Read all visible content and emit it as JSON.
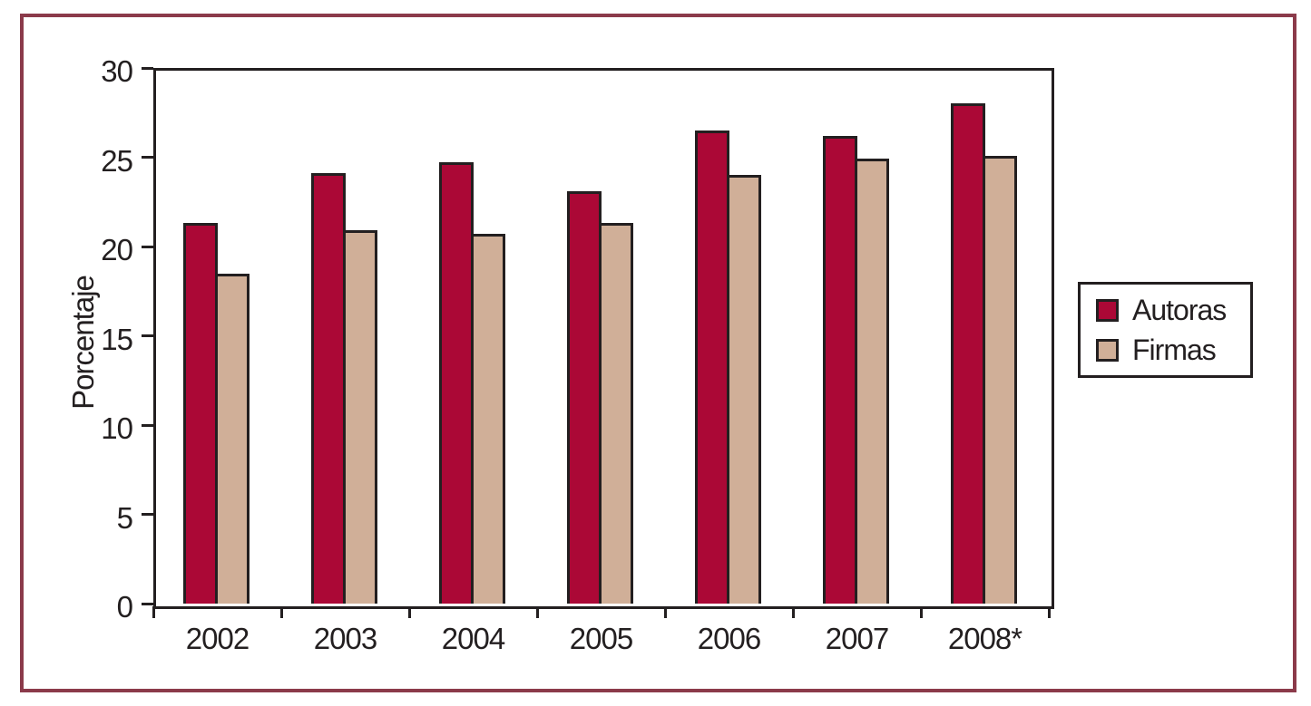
{
  "frame": {
    "border_color": "#8B3A4A"
  },
  "chart_data": {
    "type": "bar",
    "title": "",
    "categories": [
      "2002",
      "2003",
      "2004",
      "2005",
      "2006",
      "2007",
      "2008*"
    ],
    "series": [
      {
        "name": "Autoras",
        "color": "#AB0836",
        "values": [
          21.3,
          24.1,
          24.7,
          23.1,
          26.5,
          26.2,
          28.0
        ]
      },
      {
        "name": "Firmas",
        "color": "#D0AF98",
        "values": [
          18.5,
          20.9,
          20.7,
          21.3,
          24.0,
          24.9,
          25.1
        ]
      }
    ],
    "xlabel": "",
    "ylabel": "Porcentaje",
    "ylim": [
      0,
      30
    ],
    "yticks": [
      0,
      5,
      10,
      15,
      20,
      25,
      30
    ],
    "grid": false,
    "legend_position": "right",
    "axis_color": "#231F20",
    "bar_outline_color": "#231F20",
    "text_color": "#231F20",
    "plot_background": "#ffffff"
  }
}
